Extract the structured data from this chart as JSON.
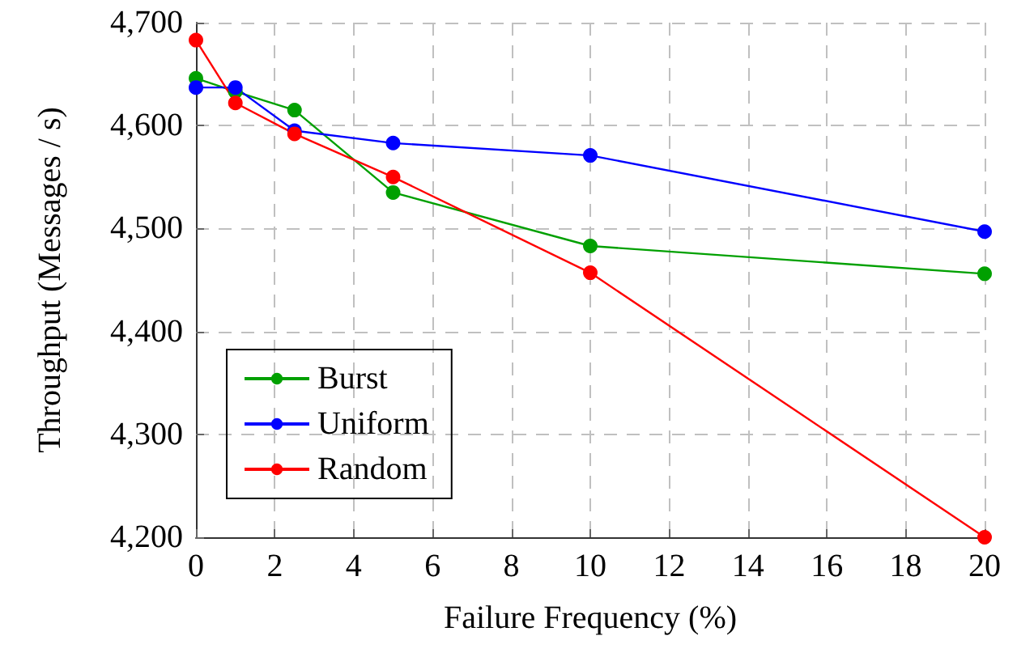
{
  "chart_data": {
    "type": "line",
    "xlabel": "Failure Frequency (%)",
    "ylabel": "Throughput (Messages / s)",
    "xlim": [
      0,
      20
    ],
    "xticks": [
      0,
      2,
      4,
      6,
      8,
      10,
      12,
      14,
      16,
      18,
      20
    ],
    "ylim": [
      4200,
      4700
    ],
    "yticks": [
      {
        "value": 4200,
        "label": "4,200"
      },
      {
        "value": 4300,
        "label": "4,300"
      },
      {
        "value": 4400,
        "label": "4,400"
      },
      {
        "value": 4500,
        "label": "4,500"
      },
      {
        "value": 4600,
        "label": "4,600"
      },
      {
        "value": 4700,
        "label": "4,700"
      }
    ],
    "x": [
      0,
      1,
      2.5,
      5,
      10,
      20
    ],
    "series": [
      {
        "name": "Burst",
        "color": "#00a000",
        "values": [
          4646,
          4633,
          4615,
          4535,
          4483,
          4456
        ]
      },
      {
        "name": "Uniform",
        "color": "#0000ff",
        "values": [
          4637,
          4637,
          4595,
          4583,
          4571,
          4497
        ]
      },
      {
        "name": "Random",
        "color": "#ff0000",
        "values": [
          4683,
          4622,
          4592,
          4550,
          4457,
          4200
        ]
      }
    ],
    "grid": true,
    "legend": "bottom left",
    "marker": "circle",
    "line_style": "solid"
  }
}
